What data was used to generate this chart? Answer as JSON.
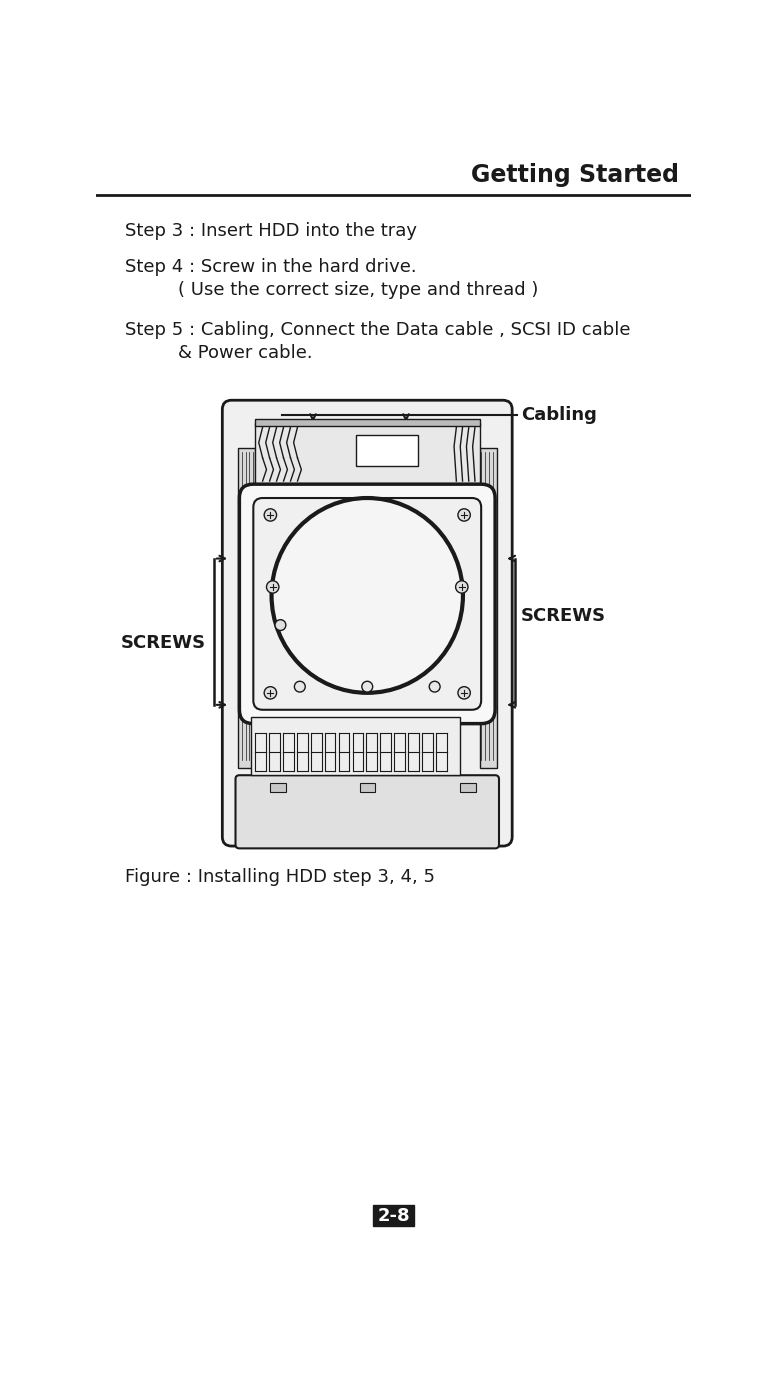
{
  "title": "Getting Started",
  "step3": "Step 3 : Insert HDD into the tray",
  "step4_line1": "Step 4 : Screw in the hard drive.",
  "step4_line2": "( Use the correct size, type and thread )",
  "step5_line1": "Step 5 : Cabling, Connect the Data cable , SCSI ID cable",
  "step5_line2": "& Power cable.",
  "figure_caption": "Figure : Installing HDD step 3, 4, 5",
  "page_number": "2-8",
  "label_screws_left": "SCREWS",
  "label_screws_right": "SCREWS",
  "label_cabling": "Cabling",
  "bg_color": "#ffffff",
  "text_color": "#1a1a1a",
  "title_color": "#1a1a1a",
  "line_color": "#1a1a1a",
  "page_bg": "#1a1a1a",
  "page_text": "#ffffff",
  "title_fontsize": 17,
  "step_fontsize": 13,
  "label_fontsize": 13,
  "caption_fontsize": 13,
  "page_fontsize": 13
}
